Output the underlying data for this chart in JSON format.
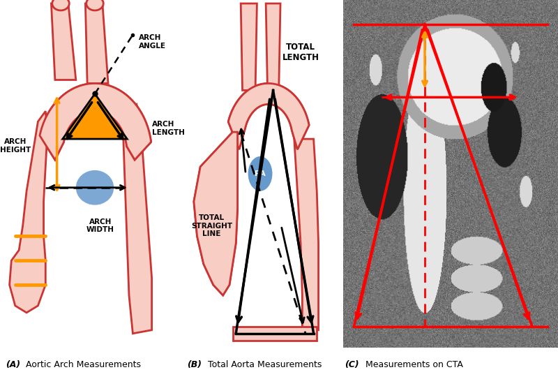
{
  "panel_A_label": "(A)",
  "panel_A_title": "Aortic Arch Measurements",
  "panel_B_label": "(B)",
  "panel_B_title": "Total Aorta Measurements",
  "panel_C_label": "(C)",
  "panel_C_title": "Measurements on CTA",
  "skin_color": "#F8CEC4",
  "skin_border": "#CC3333",
  "orange_color": "#FF9900",
  "blue_color": "#6699CC",
  "black": "#000000",
  "red": "#FF0000",
  "white": "#FFFFFF",
  "bg_color": "#FFFFFF",
  "label_fontsize": 9,
  "annot_fontsize": 7.5
}
